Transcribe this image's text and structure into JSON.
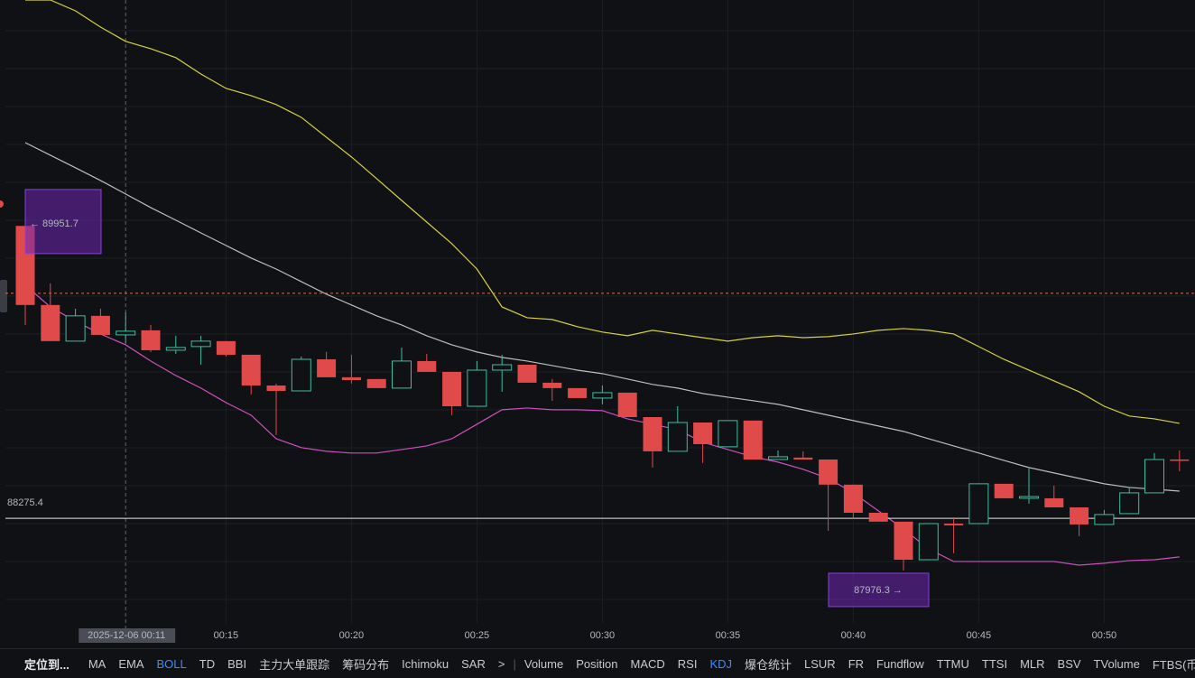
{
  "chart_data": {
    "type": "candlestick",
    "categories": [
      null,
      null,
      null,
      null,
      null,
      null,
      null,
      null,
      "00:15",
      null,
      null,
      null,
      null,
      "00:20",
      null,
      null,
      null,
      null,
      "00:25",
      null,
      null,
      null,
      null,
      "00:30",
      null,
      null,
      null,
      null,
      "00:35",
      null,
      null,
      null,
      null,
      "00:40",
      null,
      null,
      null,
      null,
      "00:45",
      null,
      null,
      null,
      null,
      "00:50",
      null,
      null,
      null
    ],
    "open": [
      89950,
      89497,
      89290,
      89435,
      89326,
      89352,
      89238,
      89259,
      89290,
      89212,
      89036,
      89005,
      89186,
      89083,
      89073,
      89021,
      89176,
      89114,
      88917,
      89124,
      89155,
      89052,
      89021,
      88964,
      88995,
      88855,
      88659,
      88824,
      88685,
      88835,
      88612,
      88623,
      88612,
      88468,
      88307,
      88256,
      88038,
      88245,
      88245,
      88473,
      88390,
      88390,
      88338,
      88240,
      88302,
      88421,
      88612
    ],
    "high": [
      89951.7,
      89621,
      89476,
      89476,
      89455,
      89383,
      89321,
      89321,
      89290,
      89212,
      89047,
      89202,
      89228,
      89212,
      89073,
      89254,
      89217,
      89114,
      89176,
      89212,
      89155,
      89073,
      89021,
      89036,
      88995,
      88855,
      88917,
      88824,
      88835,
      88835,
      88664,
      88659,
      88612,
      88468,
      88307,
      88256,
      88245,
      88281,
      88473,
      88473,
      88561,
      88462,
      88338,
      88323,
      88452,
      88649,
      88664
    ],
    "low": [
      89383,
      89290,
      89290,
      89326,
      89280,
      89228,
      89217,
      89155,
      89202,
      88985,
      88752,
      89005,
      89083,
      89047,
      89021,
      89021,
      89114,
      88866,
      88917,
      89000,
      89052,
      88948,
      88964,
      88928,
      88855,
      88566,
      88659,
      88592,
      88685,
      88612,
      88612,
      88612,
      88204,
      88271,
      88256,
      87976.3,
      88038,
      88075,
      88245,
      88390,
      88359,
      88338,
      88173,
      88240,
      88302,
      88421,
      88545
    ],
    "close": [
      89497,
      89290,
      89435,
      89326,
      89347,
      89238,
      89254,
      89290,
      89212,
      89036,
      89005,
      89186,
      89083,
      89067,
      89021,
      89176,
      89114,
      88917,
      89124,
      89155,
      89052,
      89021,
      88964,
      88995,
      88855,
      88659,
      88824,
      88700,
      88835,
      88612,
      88628,
      88612,
      88468,
      88307,
      88256,
      88038,
      88245,
      88235,
      88473,
      88390,
      88400,
      88338,
      88240,
      88297,
      88421,
      88612,
      88607
    ],
    "up_color": "#3dbfa0",
    "down_color": "#e04a4a",
    "bands": [
      {
        "color": "#d6d23a",
        "values": [
          91244,
          91244,
          91182,
          91089,
          91007,
          90965,
          90914,
          90820,
          90738,
          90696,
          90645,
          90572,
          90458,
          90345,
          90221,
          90096,
          89972,
          89848,
          89703,
          89486,
          89424,
          89414,
          89373,
          89342,
          89321,
          89352,
          89331,
          89310,
          89290,
          89310,
          89321,
          89310,
          89316,
          89331,
          89352,
          89362,
          89352,
          89331,
          89259,
          89186,
          89124,
          89062,
          89000,
          88917,
          88861,
          88845,
          88819
        ]
      },
      {
        "color": "#bdbdbd",
        "values": [
          90427,
          90355,
          90283,
          90210,
          90133,
          90055,
          89983,
          89910,
          89838,
          89766,
          89703,
          89631,
          89559,
          89497,
          89435,
          89383,
          89321,
          89269,
          89228,
          89197,
          89176,
          89150,
          89124,
          89104,
          89073,
          89042,
          89021,
          88990,
          88969,
          88949,
          88928,
          88897,
          88866,
          88835,
          88804,
          88773,
          88731,
          88690,
          88649,
          88607,
          88566,
          88535,
          88504,
          88473,
          88452,
          88442,
          88431
        ]
      },
      {
        "color": "#cf4fc0",
        "values": [
          89610,
          89486,
          89404,
          89331,
          89269,
          89176,
          89093,
          89021,
          88938,
          88866,
          88731,
          88680,
          88659,
          88649,
          88649,
          88669,
          88690,
          88731,
          88814,
          88897,
          88907,
          88897,
          88897,
          88892,
          88845,
          88814,
          88783,
          88711,
          88669,
          88628,
          88597,
          88556,
          88504,
          88421,
          88318,
          88214,
          88100,
          88028,
          88028,
          88028,
          88028,
          88028,
          88007,
          88018,
          88033,
          88038,
          88054
        ]
      }
    ],
    "ylim": [
      87676,
      91244
    ],
    "last_price": 88275.4,
    "alert_price": 89564,
    "high_label": "← 89951.7",
    "low_label": "87976.3 →",
    "crosshair_label": "2025-12-06 00:11"
  },
  "toolbar": {
    "locate": "定位到...",
    "main_indicators": [
      {
        "label": "MA",
        "active": false
      },
      {
        "label": "EMA",
        "active": false
      },
      {
        "label": "BOLL",
        "active": true
      },
      {
        "label": "TD",
        "active": false
      },
      {
        "label": "BBI",
        "active": false
      },
      {
        "label": "主力大单跟踪",
        "active": false
      },
      {
        "label": "筹码分布",
        "active": false
      },
      {
        "label": "Ichimoku",
        "active": false
      },
      {
        "label": "SAR",
        "active": false
      }
    ],
    "more": ">",
    "sub_indicators": [
      {
        "label": "Volume",
        "active": false
      },
      {
        "label": "Position",
        "active": false
      },
      {
        "label": "MACD",
        "active": false
      },
      {
        "label": "RSI",
        "active": false
      },
      {
        "label": "KDJ",
        "active": true
      },
      {
        "label": "爆仓统计",
        "active": false
      },
      {
        "label": "LSUR",
        "active": false
      },
      {
        "label": "FR",
        "active": false
      },
      {
        "label": "Fundflow",
        "active": false
      },
      {
        "label": "TTMU",
        "active": false
      },
      {
        "label": "TTSI",
        "active": false
      },
      {
        "label": "MLR",
        "active": false
      },
      {
        "label": "BSV",
        "active": false
      },
      {
        "label": "TVolume",
        "active": false
      },
      {
        "label": "FTBS(币种约",
        "active": false
      }
    ]
  }
}
